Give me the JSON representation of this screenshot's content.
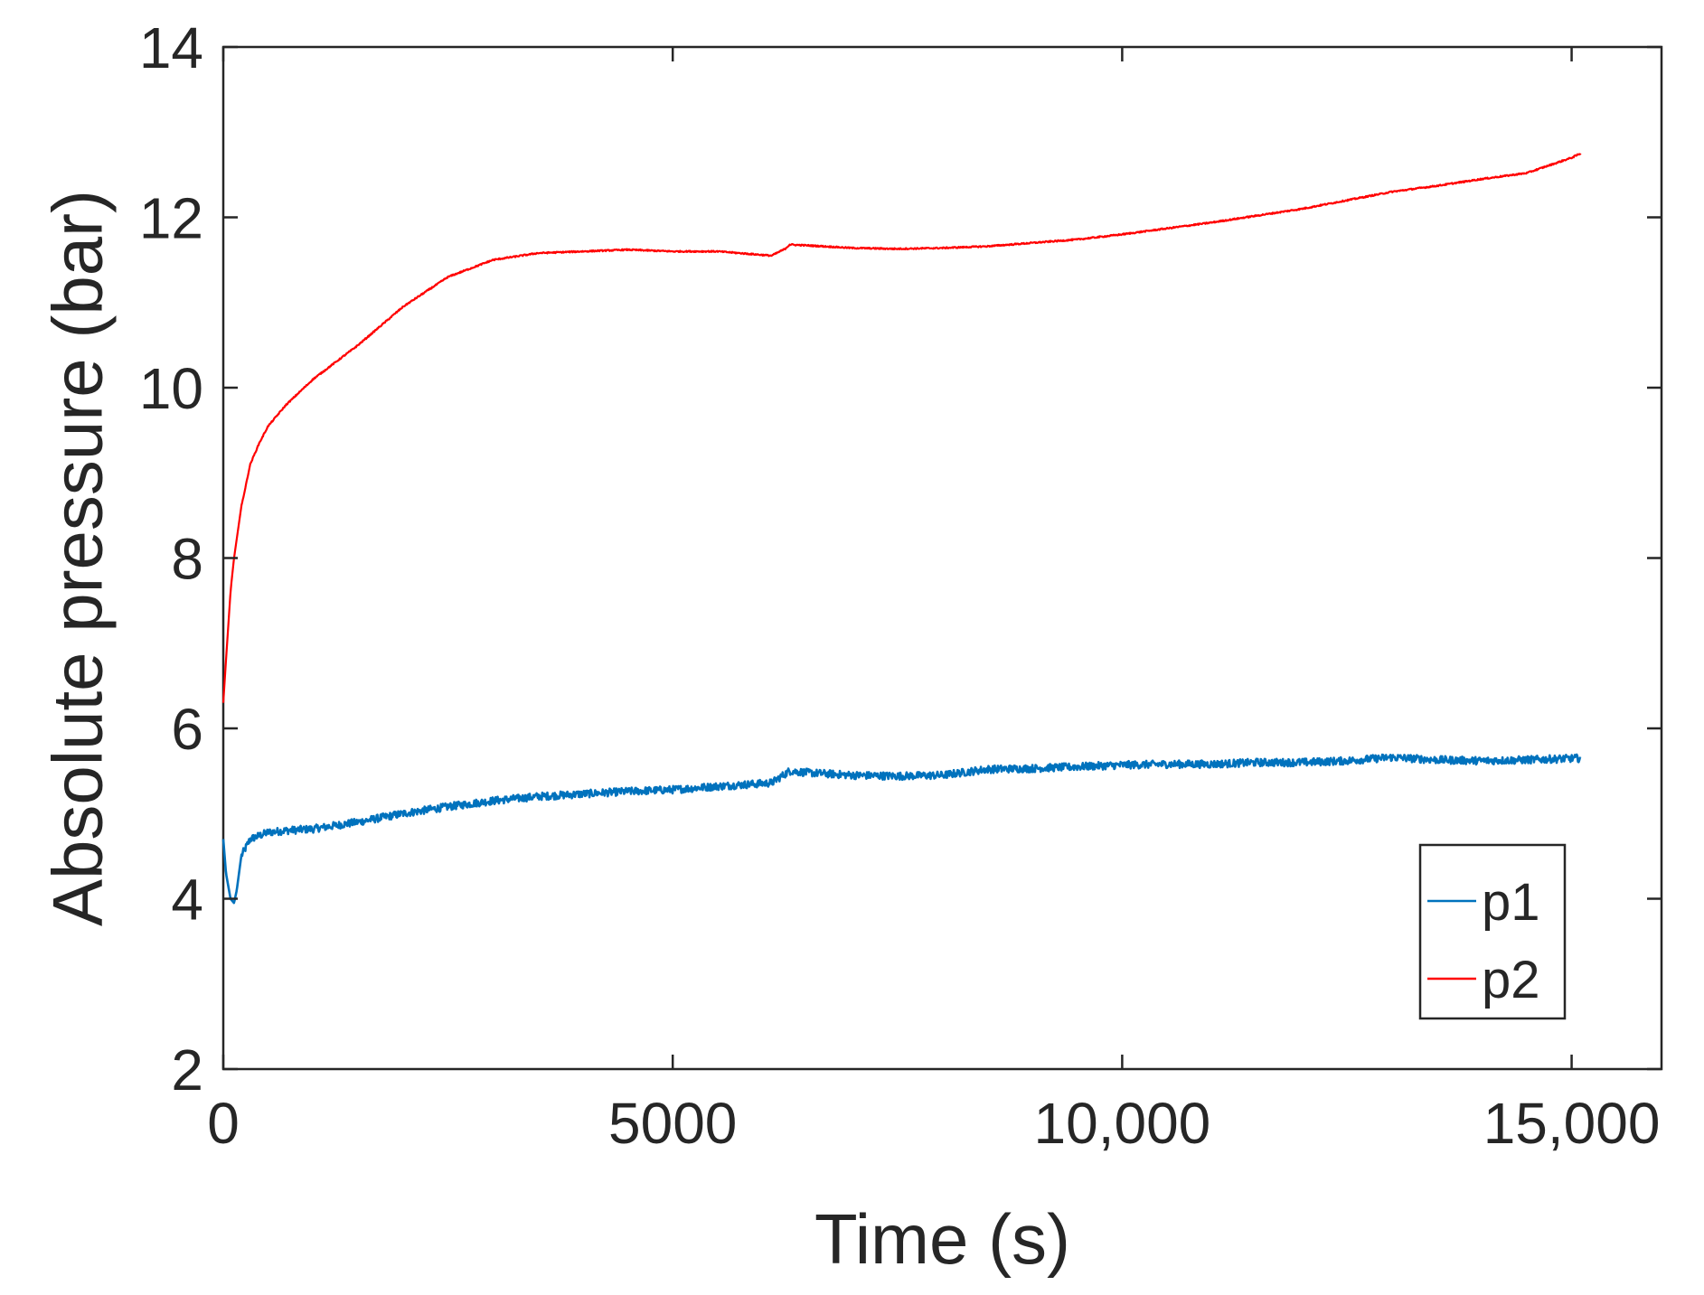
{
  "chart_data": {
    "type": "line",
    "title": "",
    "xlabel": "Time (s)",
    "ylabel": "Absolute pressure (bar)",
    "xlim": [
      0,
      16000
    ],
    "ylim": [
      2,
      14
    ],
    "x_ticks": [
      0,
      5000,
      10000,
      15000
    ],
    "x_tick_labels": [
      "0",
      "5000",
      "10,000",
      "15,000"
    ],
    "y_ticks": [
      2,
      4,
      6,
      8,
      10,
      12,
      14
    ],
    "y_tick_labels": [
      "2",
      "4",
      "6",
      "8",
      "10",
      "12",
      "14"
    ],
    "grid": false,
    "legend": {
      "placement": "bottom-right"
    },
    "series": [
      {
        "name": "p1",
        "color": "#0072BD",
        "noise": "high",
        "points": [
          [
            0,
            4.7
          ],
          [
            30,
            4.3
          ],
          [
            80,
            4.0
          ],
          [
            120,
            3.95
          ],
          [
            150,
            4.1
          ],
          [
            200,
            4.5
          ],
          [
            300,
            4.7
          ],
          [
            500,
            4.78
          ],
          [
            700,
            4.8
          ],
          [
            1000,
            4.82
          ],
          [
            1500,
            4.9
          ],
          [
            2000,
            5.0
          ],
          [
            2500,
            5.08
          ],
          [
            3000,
            5.15
          ],
          [
            3500,
            5.2
          ],
          [
            4000,
            5.23
          ],
          [
            4500,
            5.26
          ],
          [
            5000,
            5.28
          ],
          [
            5500,
            5.32
          ],
          [
            6100,
            5.36
          ],
          [
            6300,
            5.5
          ],
          [
            6500,
            5.48
          ],
          [
            7000,
            5.45
          ],
          [
            7500,
            5.44
          ],
          [
            8000,
            5.45
          ],
          [
            8500,
            5.52
          ],
          [
            9000,
            5.53
          ],
          [
            9500,
            5.55
          ],
          [
            10000,
            5.57
          ],
          [
            10500,
            5.58
          ],
          [
            11000,
            5.58
          ],
          [
            11500,
            5.6
          ],
          [
            12000,
            5.6
          ],
          [
            12500,
            5.62
          ],
          [
            13000,
            5.66
          ],
          [
            13500,
            5.63
          ],
          [
            14000,
            5.62
          ],
          [
            14500,
            5.63
          ],
          [
            15100,
            5.65
          ]
        ]
      },
      {
        "name": "p2",
        "color": "#FF0000",
        "noise": "low",
        "points": [
          [
            0,
            6.3
          ],
          [
            30,
            6.8
          ],
          [
            80,
            7.6
          ],
          [
            120,
            8.0
          ],
          [
            200,
            8.6
          ],
          [
            300,
            9.1
          ],
          [
            400,
            9.35
          ],
          [
            500,
            9.55
          ],
          [
            700,
            9.8
          ],
          [
            1000,
            10.1
          ],
          [
            1500,
            10.5
          ],
          [
            2000,
            10.95
          ],
          [
            2500,
            11.3
          ],
          [
            3000,
            11.5
          ],
          [
            3500,
            11.58
          ],
          [
            4000,
            11.6
          ],
          [
            4500,
            11.62
          ],
          [
            5000,
            11.6
          ],
          [
            5500,
            11.6
          ],
          [
            6100,
            11.55
          ],
          [
            6250,
            11.63
          ],
          [
            6300,
            11.68
          ],
          [
            6500,
            11.67
          ],
          [
            7000,
            11.64
          ],
          [
            7500,
            11.63
          ],
          [
            8000,
            11.64
          ],
          [
            8500,
            11.66
          ],
          [
            9000,
            11.7
          ],
          [
            9500,
            11.74
          ],
          [
            10000,
            11.8
          ],
          [
            10500,
            11.87
          ],
          [
            11000,
            11.94
          ],
          [
            11500,
            12.02
          ],
          [
            12000,
            12.1
          ],
          [
            12500,
            12.2
          ],
          [
            13000,
            12.3
          ],
          [
            13500,
            12.37
          ],
          [
            14000,
            12.45
          ],
          [
            14500,
            12.52
          ],
          [
            15000,
            12.7
          ],
          [
            15100,
            12.75
          ]
        ]
      }
    ]
  }
}
